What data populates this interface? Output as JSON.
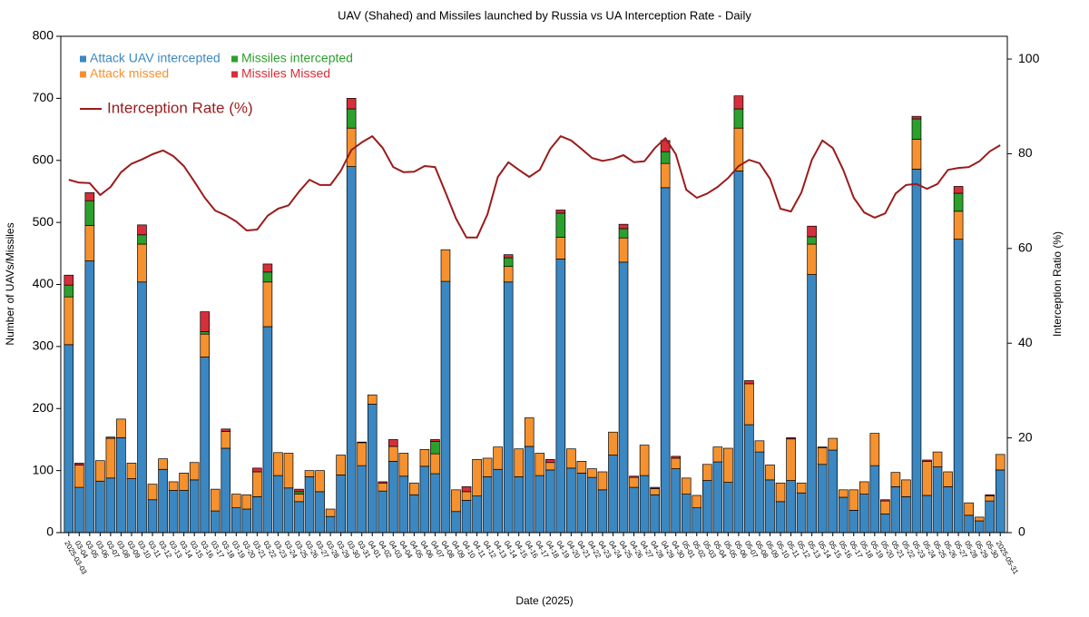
{
  "chart_data": {
    "type": "stacked-bar-line",
    "title": "UAV (Shahed) and Missiles launched by Russia vs UA Interception Rate - Daily",
    "x_label": "Date (2025)",
    "y_label": "Number of UAVs/Missiles",
    "y2_label": "Interception Ratio (%)",
    "categories": [
      "2025-03-03",
      "03-04",
      "03-05",
      "03-06",
      "03-07",
      "03-08",
      "03-09",
      "03-10",
      "03-11",
      "03-12",
      "03-13",
      "03-14",
      "03-15",
      "03-16",
      "03-17",
      "03-18",
      "03-19",
      "03-20",
      "03-21",
      "03-22",
      "03-23",
      "03-24",
      "03-25",
      "03-26",
      "03-27",
      "03-28",
      "03-29",
      "03-30",
      "03-31",
      "04-01",
      "04-02",
      "04-03",
      "04-04",
      "04-05",
      "04-06",
      "04-07",
      "04-08",
      "04-09",
      "04-10",
      "04-11",
      "04-12",
      "04-13",
      "04-14",
      "04-15",
      "04-16",
      "04-17",
      "04-18",
      "04-19",
      "04-20",
      "04-21",
      "04-22",
      "04-23",
      "04-24",
      "04-25",
      "04-26",
      "04-27",
      "04-28",
      "04-29",
      "04-30",
      "05-01",
      "05-02",
      "05-03",
      "05-04",
      "05-05",
      "05-06",
      "05-07",
      "05-08",
      "05-09",
      "05-10",
      "05-11",
      "05-12",
      "05-13",
      "05-14",
      "05-15",
      "05-16",
      "05-17",
      "05-18",
      "05-19",
      "05-20",
      "05-21",
      "05-22",
      "05-23",
      "05-24",
      "05-25",
      "05-26",
      "05-27",
      "05-28",
      "05-29",
      "05-30",
      "2025-05-31"
    ],
    "series": [
      {
        "name": "Attack UAV intercepted",
        "color": "#3b87c1",
        "values": [
          303,
          73,
          438,
          83,
          88,
          153,
          87,
          404,
          53,
          102,
          68,
          68,
          85,
          283,
          35,
          136,
          40,
          38,
          58,
          332,
          92,
          72,
          50,
          90,
          66,
          26,
          93,
          590,
          108,
          207,
          67,
          115,
          91,
          61,
          107,
          95,
          405,
          34,
          52,
          59,
          90,
          102,
          404,
          90,
          139,
          92,
          101,
          441,
          104,
          96,
          89,
          69,
          125,
          436,
          73,
          92,
          61,
          556,
          103,
          62,
          40,
          84,
          114,
          81,
          583,
          174,
          130,
          85,
          50,
          84,
          64,
          416,
          110,
          133,
          57,
          36,
          62,
          108,
          30,
          74,
          58,
          586,
          60,
          106,
          74,
          473,
          28,
          19,
          51,
          101
        ]
      },
      {
        "name": "Attack missed",
        "color": "#f5922f",
        "values": [
          77,
          36,
          57,
          33,
          64,
          30,
          25,
          61,
          25,
          17,
          14,
          28,
          28,
          37,
          35,
          27,
          22,
          23,
          40,
          72,
          37,
          56,
          12,
          10,
          34,
          12,
          32,
          62,
          37,
          15,
          13,
          24,
          37,
          19,
          27,
          32,
          51,
          35,
          14,
          59,
          30,
          36,
          25,
          45,
          46,
          36,
          12,
          35,
          31,
          19,
          14,
          29,
          37,
          39,
          16,
          49,
          10,
          39,
          17,
          26,
          20,
          26,
          24,
          55,
          69,
          66,
          18,
          24,
          30,
          67,
          16,
          49,
          27,
          19,
          12,
          33,
          20,
          52,
          21,
          23,
          27,
          48,
          55,
          24,
          24,
          45,
          20,
          6,
          8,
          25
        ]
      },
      {
        "name": "Missiles intercepted",
        "color": "#2ca02c",
        "values": [
          19,
          0,
          40,
          0,
          0,
          0,
          0,
          15,
          0,
          0,
          0,
          0,
          0,
          4,
          0,
          0,
          0,
          0,
          0,
          16,
          0,
          0,
          4,
          0,
          0,
          0,
          0,
          31,
          0,
          0,
          0,
          0,
          0,
          0,
          0,
          20,
          0,
          0,
          0,
          0,
          0,
          0,
          14,
          0,
          0,
          0,
          0,
          39,
          0,
          0,
          0,
          0,
          0,
          15,
          0,
          0,
          0,
          19,
          0,
          0,
          0,
          0,
          0,
          0,
          31,
          0,
          0,
          0,
          0,
          0,
          0,
          12,
          0,
          0,
          0,
          0,
          0,
          0,
          0,
          0,
          0,
          33,
          0,
          0,
          0,
          29,
          0,
          0,
          0,
          0
        ]
      },
      {
        "name": "Missiles Missed",
        "color": "#d62f3a",
        "values": [
          16,
          3,
          13,
          0,
          2,
          0,
          0,
          16,
          0,
          0,
          0,
          0,
          0,
          32,
          0,
          4,
          0,
          0,
          6,
          13,
          0,
          0,
          4,
          0,
          0,
          0,
          0,
          17,
          1,
          0,
          2,
          11,
          0,
          0,
          0,
          3,
          0,
          0,
          8,
          0,
          0,
          0,
          5,
          0,
          0,
          0,
          5,
          5,
          0,
          0,
          0,
          0,
          0,
          7,
          2,
          0,
          2,
          18,
          3,
          0,
          0,
          0,
          0,
          0,
          21,
          5,
          0,
          0,
          0,
          2,
          0,
          17,
          1,
          0,
          0,
          0,
          0,
          0,
          2,
          0,
          0,
          4,
          2,
          0,
          0,
          11,
          0,
          0,
          2,
          0
        ]
      },
      {
        "name": "Interception Rate (%)",
        "color": "#9b1b1b",
        "axis": "y2",
        "values": [
          74.5,
          73.9,
          73.8,
          71.3,
          73.0,
          76.1,
          77.9,
          78.8,
          79.9,
          80.7,
          79.5,
          77.4,
          74.1,
          70.7,
          68.0,
          67.0,
          65.7,
          63.8,
          64.0,
          66.9,
          68.4,
          69.1,
          72.0,
          74.5,
          73.4,
          73.4,
          76.4,
          80.8,
          82.4,
          83.7,
          81.2,
          77.2,
          76.1,
          76.2,
          77.4,
          77.2,
          71.8,
          66.3,
          62.3,
          62.3,
          67.2,
          75.1,
          78.2,
          76.6,
          75.1,
          76.6,
          81.0,
          83.7,
          82.8,
          81.0,
          79.1,
          78.5,
          78.9,
          79.7,
          78.2,
          78.4,
          81.2,
          83.3,
          79.9,
          72.4,
          70.7,
          71.6,
          73.0,
          74.9,
          77.4,
          78.7,
          78.0,
          74.7,
          68.4,
          67.8,
          71.8,
          78.7,
          82.8,
          81.2,
          76.6,
          70.7,
          67.6,
          66.5,
          67.4,
          71.6,
          73.4,
          73.6,
          72.6,
          73.6,
          76.6,
          77.0,
          77.2,
          78.4,
          80.5,
          81.8
        ]
      }
    ],
    "ylim": [
      0,
      800
    ],
    "yticks": [
      0,
      100,
      200,
      300,
      400,
      500,
      600,
      700,
      800
    ],
    "y2lim": [
      0,
      104.8
    ],
    "y2ticks": [
      0,
      20,
      40,
      60,
      80,
      100
    ],
    "grid": false,
    "legend": "upper left"
  }
}
